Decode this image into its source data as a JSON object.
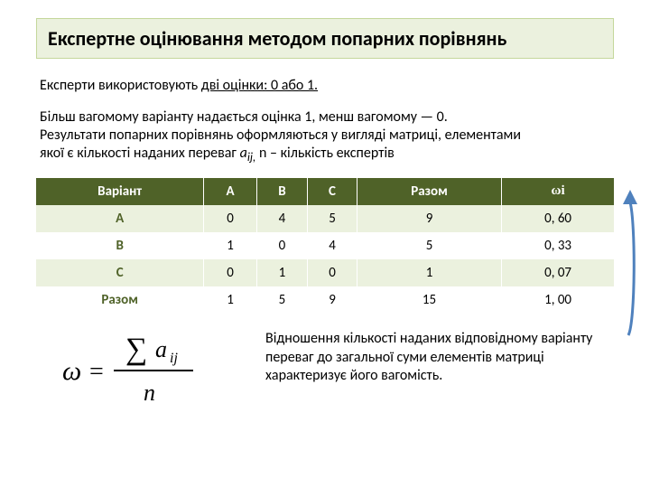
{
  "title": "Експертне оцінювання методом попарних порівнянь",
  "subtitle_pre": "Експерти використовують ",
  "subtitle_u": "дві оцінки: 0 або 1.",
  "desc_line1": "Більш вагомому варіанту надається оцінка 1, менш вагомому — 0.",
  "desc_line2": "Результати попарних порівнянь оформляються у вигляді матриці, елементами",
  "desc_line3_pre": "якої є кількості наданих переваг ",
  "desc_a": "a",
  "desc_sub_ij": "ij,",
  "desc_line3_post": " n – кількість експертів",
  "table": {
    "headers": [
      "Варіант",
      "A",
      "B",
      "C",
      "Разом",
      "ωі"
    ],
    "rows": [
      {
        "label": "A",
        "cells": [
          "0",
          "4",
          "5",
          "9",
          "0, 60"
        ],
        "class": "odd"
      },
      {
        "label": "В",
        "cells": [
          "1",
          "0",
          "4",
          "5",
          "0, 33"
        ],
        "class": "even"
      },
      {
        "label": "С",
        "cells": [
          "0",
          "1",
          "0",
          "1",
          "0, 07"
        ],
        "class": "odd"
      },
      {
        "label": "Разом",
        "cells": [
          "1",
          "5",
          "9",
          "15",
          "1, 00"
        ],
        "class": "even"
      }
    ],
    "header_bg": "#4f6228",
    "header_fg": "#ffffff",
    "odd_bg": "#ebf1de",
    "even_bg": "#ffffff"
  },
  "note": "Відношення кількості наданих відповідному варіанту переваг до загальної суми елементів матриці характеризує його вагомість.",
  "arrow_color": "#4f81bd"
}
